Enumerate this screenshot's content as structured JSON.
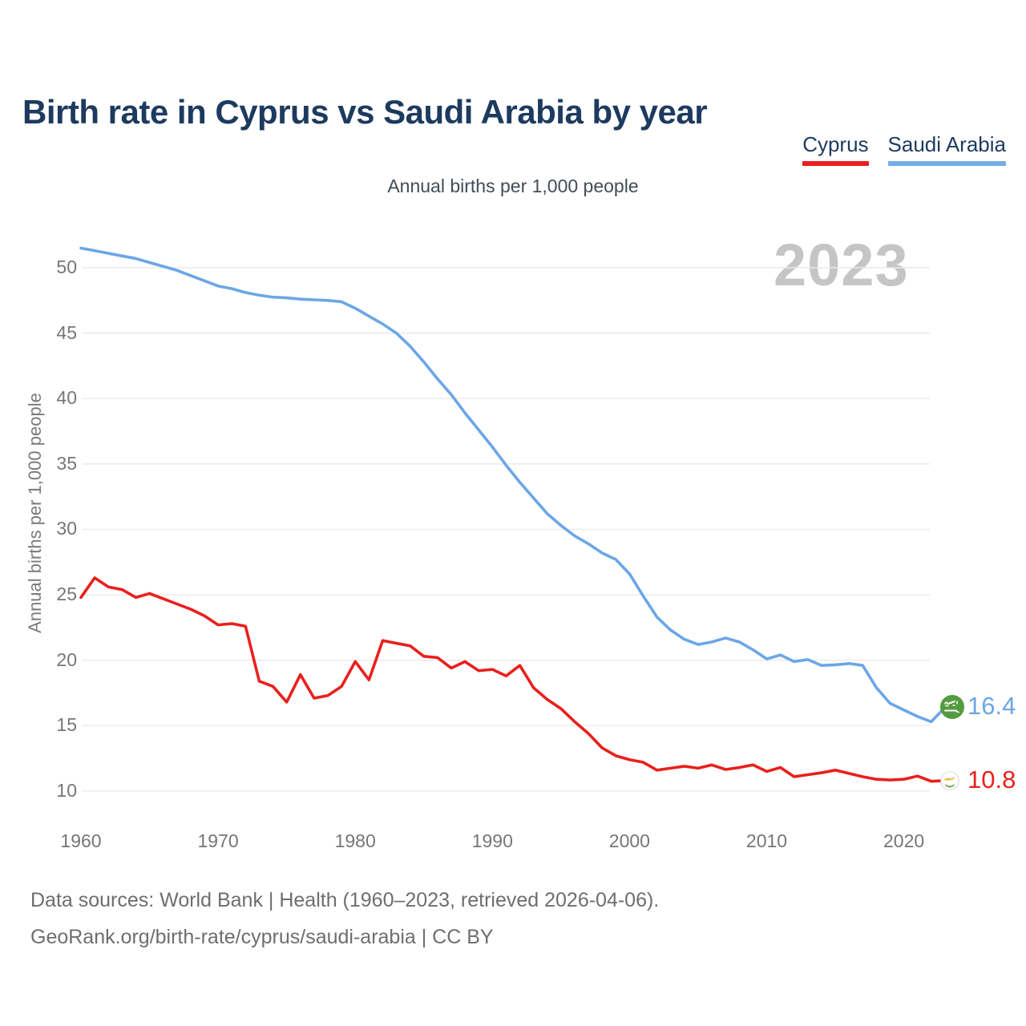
{
  "title": "Birth rate in Cyprus vs Saudi Arabia by year",
  "subtitle": "Annual births per 1,000 people",
  "watermark": "2023",
  "legend": {
    "items": [
      {
        "label": "Cyprus",
        "color": "#e9201c"
      },
      {
        "label": "Saudi Arabia",
        "color": "#74aee6"
      }
    ]
  },
  "y_axis": {
    "title": "Annual births per 1,000 people",
    "tick_labels": [
      "50",
      "45",
      "40",
      "35",
      "30",
      "25",
      "20",
      "15",
      "10"
    ],
    "tick_values": [
      50,
      45,
      40,
      35,
      30,
      25,
      20,
      15,
      10
    ]
  },
  "x_axis": {
    "tick_labels": [
      "1960",
      "1970",
      "1980",
      "1990",
      "2000",
      "2010",
      "2020"
    ],
    "tick_values": [
      1960,
      1970,
      1980,
      1990,
      2000,
      2010,
      2020
    ]
  },
  "end_labels": [
    {
      "series": "Saudi Arabia",
      "value": "16.4",
      "flag": "saudi-arabia-flag",
      "color": "#6ca6e6"
    },
    {
      "series": "Cyprus",
      "value": "10.8",
      "flag": "cyprus-flag",
      "color": "#e9201c"
    }
  ],
  "footer": {
    "line1": "Data sources: World Bank | Health (1960–2023, retrieved 2026-04-06).",
    "line2": "GeoRank.org/birth-rate/cyprus/saudi-arabia | CC BY"
  },
  "chart_data": {
    "type": "line",
    "title": "Birth rate in Cyprus vs Saudi Arabia by year",
    "xlabel": "",
    "ylabel": "Annual births per 1,000 people",
    "xlim": [
      1960,
      2023
    ],
    "ylim": [
      8.5,
      53
    ],
    "grid": "horizontal",
    "legend_position": "top-right",
    "x": [
      1960,
      1961,
      1962,
      1963,
      1964,
      1965,
      1966,
      1967,
      1968,
      1969,
      1970,
      1971,
      1972,
      1973,
      1974,
      1975,
      1976,
      1977,
      1978,
      1979,
      1980,
      1981,
      1982,
      1983,
      1984,
      1985,
      1986,
      1987,
      1988,
      1989,
      1990,
      1991,
      1992,
      1993,
      1994,
      1995,
      1996,
      1997,
      1998,
      1999,
      2000,
      2001,
      2002,
      2003,
      2004,
      2005,
      2006,
      2007,
      2008,
      2009,
      2010,
      2011,
      2012,
      2013,
      2014,
      2015,
      2016,
      2017,
      2018,
      2019,
      2020,
      2021,
      2022,
      2023
    ],
    "series": [
      {
        "name": "Cyprus",
        "color": "#e9201c",
        "values": [
          24.8,
          26.3,
          25.6,
          25.4,
          24.8,
          25.1,
          24.7,
          24.3,
          23.9,
          23.4,
          22.7,
          22.8,
          22.6,
          18.4,
          18.0,
          16.8,
          18.9,
          17.1,
          17.3,
          18.0,
          19.9,
          18.5,
          21.5,
          21.3,
          21.1,
          20.3,
          20.2,
          19.4,
          19.9,
          19.2,
          19.3,
          18.8,
          19.6,
          17.9,
          17.0,
          16.3,
          15.3,
          14.4,
          13.3,
          12.7,
          12.4,
          12.2,
          11.6,
          11.75,
          11.9,
          11.75,
          12.0,
          11.65,
          11.8,
          12.0,
          11.5,
          11.8,
          11.1,
          11.25,
          11.4,
          11.6,
          11.35,
          11.1,
          10.9,
          10.85,
          10.9,
          11.15,
          10.75,
          10.8
        ]
      },
      {
        "name": "Saudi Arabia",
        "color": "#6ca6e6",
        "values": [
          51.5,
          51.3,
          51.1,
          50.9,
          50.7,
          50.4,
          50.1,
          49.8,
          49.4,
          49.0,
          48.6,
          48.4,
          48.1,
          47.9,
          47.75,
          47.7,
          47.6,
          47.55,
          47.5,
          47.4,
          46.9,
          46.3,
          45.7,
          45.0,
          44.0,
          42.8,
          41.5,
          40.3,
          38.9,
          37.6,
          36.3,
          34.9,
          33.6,
          32.4,
          31.2,
          30.3,
          29.5,
          28.9,
          28.2,
          27.7,
          26.6,
          24.9,
          23.3,
          22.3,
          21.6,
          21.2,
          21.4,
          21.7,
          21.4,
          20.8,
          20.1,
          20.4,
          19.9,
          20.05,
          19.6,
          19.65,
          19.75,
          19.6,
          17.9,
          16.7,
          16.2,
          15.7,
          15.3,
          16.4
        ]
      }
    ]
  }
}
